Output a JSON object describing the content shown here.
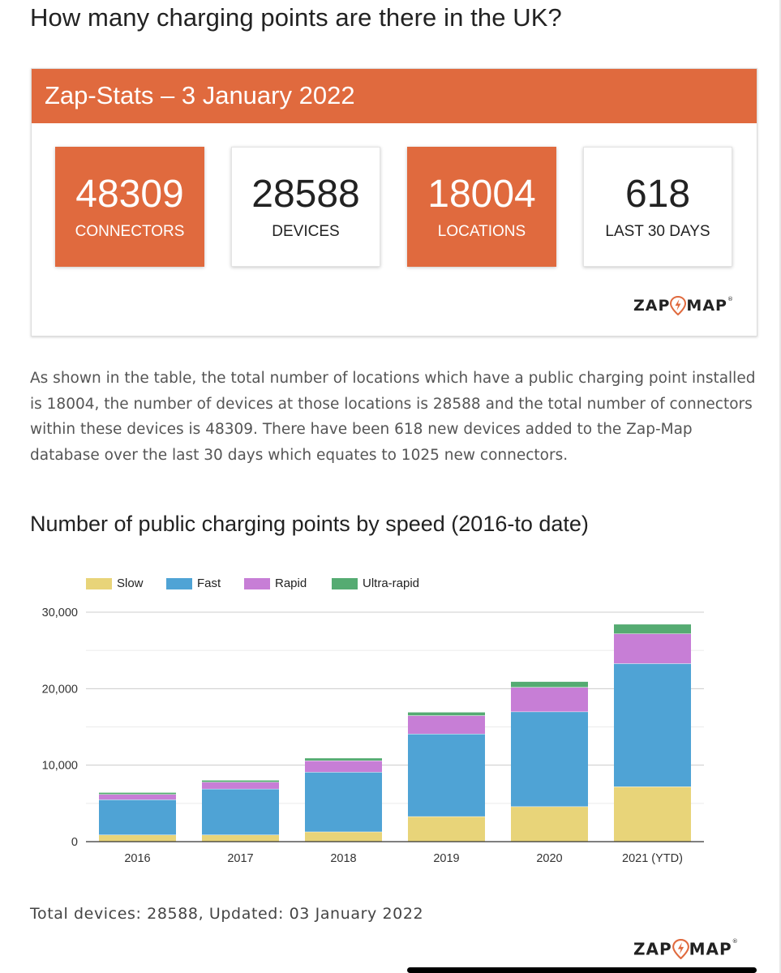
{
  "page": {
    "title": "How many charging points are there in the UK?"
  },
  "stats_card": {
    "header": "Zap-Stats – 3 January 2022",
    "stats": [
      {
        "value": "48309",
        "label": "CONNECTORS",
        "accent": true
      },
      {
        "value": "28588",
        "label": "DEVICES",
        "accent": false
      },
      {
        "value": "18004",
        "label": "LOCATIONS",
        "accent": true
      },
      {
        "value": "618",
        "label": "LAST 30 DAYS",
        "accent": false
      }
    ],
    "logo_text_left": "ZAP",
    "logo_text_right": "MAP"
  },
  "intro_text": "As shown in the table, the total number of locations which have a public charging point installed is 18004, the number of devices at those locations is 28588 and the total number of connectors within these devices is 48309. There have been 618 new devices added to the Zap-Map database over the last 30 days which equates to 1025 new connectors.",
  "section_title": "Number of public charging points by speed (2016-to date)",
  "chart_data": {
    "type": "bar",
    "stacked": true,
    "title": "",
    "xlabel": "",
    "ylabel": "",
    "categories": [
      "2016",
      "2017",
      "2018",
      "2019",
      "2020",
      "2021 (YTD)"
    ],
    "series": [
      {
        "name": "Slow",
        "color": "#e8d479",
        "values": [
          900,
          900,
          1300,
          3300,
          4600,
          7200
        ]
      },
      {
        "name": "Fast",
        "color": "#4fa3d5",
        "values": [
          4600,
          6000,
          7800,
          10800,
          12400,
          16100
        ]
      },
      {
        "name": "Rapid",
        "color": "#c77ed6",
        "values": [
          700,
          900,
          1500,
          2400,
          3200,
          3900
        ]
      },
      {
        "name": "Ultra-rapid",
        "color": "#55ab72",
        "values": [
          200,
          200,
          300,
          400,
          700,
          1200
        ]
      }
    ],
    "ylim": [
      0,
      30000
    ],
    "yticks": [
      0,
      10000,
      20000,
      30000
    ],
    "ytick_labels": [
      "0",
      "10,000",
      "20,000",
      "30,000"
    ],
    "grid": true,
    "legend_position": "top-left"
  },
  "footer": {
    "summary": "Total devices: 28588, Updated: 03 January 2022",
    "logo_text_left": "ZAP",
    "logo_text_right": "MAP"
  },
  "colors": {
    "brand_orange": "#e06a3e",
    "logo_bolt": "#e06a3e"
  },
  "icons": {
    "logo_bolt": "lightning-bolt-pin-icon"
  }
}
